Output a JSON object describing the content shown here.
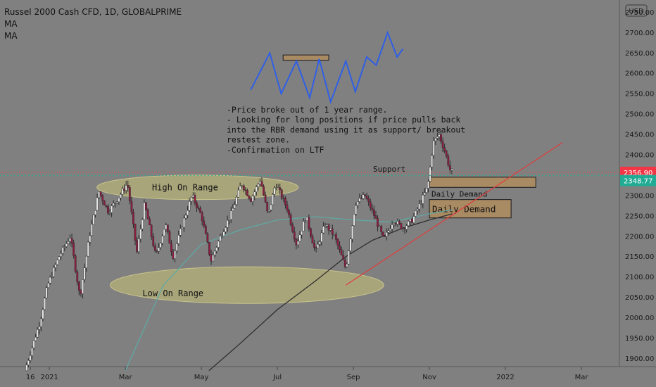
{
  "header": {
    "title": "Russel 2000 Cash CFD, 1D, GLOBALPRIME",
    "indicators": [
      "MA",
      "MA"
    ]
  },
  "currency_badge": "USD",
  "chart_data": {
    "type": "candlestick",
    "symbol": "Russel 2000 Cash CFD",
    "timeframe": "1D",
    "ylim": [
      1880,
      2780
    ],
    "y_ticks": [
      1900,
      1950,
      2000,
      2050,
      2100,
      2150,
      2200,
      2250,
      2300,
      2350,
      2400,
      2450,
      2500,
      2550,
      2600,
      2650,
      2700,
      2750
    ],
    "x_ticks": [
      {
        "label": "16",
        "month": -0.5
      },
      {
        "label": "2021",
        "month": 0
      },
      {
        "label": "Mar",
        "month": 2
      },
      {
        "label": "May",
        "month": 4
      },
      {
        "label": "Jul",
        "month": 6
      },
      {
        "label": "Sep",
        "month": 8
      },
      {
        "label": "Nov",
        "month": 10
      },
      {
        "label": "2022",
        "month": 12
      },
      {
        "label": "Mar",
        "month": 14
      }
    ],
    "xlim_months": [
      -1.3,
      15.0
    ],
    "price_path": [
      [
        -0.6,
        1870
      ],
      [
        -0.2,
        1990
      ],
      [
        0.0,
        2080
      ],
      [
        0.3,
        2150
      ],
      [
        0.6,
        2200
      ],
      [
        0.85,
        2050
      ],
      [
        1.1,
        2200
      ],
      [
        1.35,
        2310
      ],
      [
        1.6,
        2260
      ],
      [
        1.9,
        2300
      ],
      [
        2.1,
        2330
      ],
      [
        2.35,
        2160
      ],
      [
        2.55,
        2280
      ],
      [
        2.85,
        2150
      ],
      [
        3.1,
        2230
      ],
      [
        3.3,
        2150
      ],
      [
        3.55,
        2230
      ],
      [
        3.8,
        2300
      ],
      [
        4.05,
        2250
      ],
      [
        4.3,
        2140
      ],
      [
        4.55,
        2200
      ],
      [
        4.85,
        2260
      ],
      [
        5.1,
        2330
      ],
      [
        5.35,
        2290
      ],
      [
        5.6,
        2340
      ],
      [
        5.8,
        2250
      ],
      [
        6.0,
        2330
      ],
      [
        6.3,
        2270
      ],
      [
        6.55,
        2180
      ],
      [
        6.8,
        2250
      ],
      [
        7.05,
        2160
      ],
      [
        7.3,
        2230
      ],
      [
        7.55,
        2200
      ],
      [
        7.85,
        2120
      ],
      [
        8.1,
        2280
      ],
      [
        8.35,
        2300
      ],
      [
        8.6,
        2250
      ],
      [
        8.85,
        2190
      ],
      [
        9.1,
        2240
      ],
      [
        9.35,
        2220
      ],
      [
        9.6,
        2240
      ],
      [
        9.85,
        2290
      ],
      [
        10.0,
        2320
      ],
      [
        10.15,
        2430
      ],
      [
        10.3,
        2450
      ],
      [
        10.45,
        2410
      ],
      [
        10.6,
        2360
      ]
    ],
    "series": [
      {
        "name": "MA",
        "color": "#5fa8a2",
        "points": [
          [
            2.0,
            1870
          ],
          [
            3.0,
            2080
          ],
          [
            4.0,
            2180
          ],
          [
            5.0,
            2215
          ],
          [
            6.0,
            2240
          ],
          [
            7.0,
            2248
          ],
          [
            8.0,
            2240
          ],
          [
            9.0,
            2235
          ],
          [
            10.0,
            2255
          ],
          [
            10.6,
            2265
          ]
        ]
      },
      {
        "name": "MA",
        "color": "#2f2f2f",
        "points": [
          [
            4.2,
            1870
          ],
          [
            5.0,
            1935
          ],
          [
            6.0,
            2020
          ],
          [
            7.0,
            2090
          ],
          [
            7.8,
            2150
          ],
          [
            8.5,
            2190
          ],
          [
            9.3,
            2220
          ],
          [
            10.0,
            2240
          ],
          [
            10.6,
            2255
          ]
        ]
      }
    ],
    "current_price": "2356.90",
    "ma_value": "2348.77",
    "price_label_colors": {
      "current": "#f23645",
      "ma": "#22ab94"
    },
    "zones": [
      {
        "label": "High On Range",
        "kind": "ellipse",
        "center_month": 3.9,
        "center_price": 2320,
        "half_months": 2.65,
        "half_price": 30
      },
      {
        "label": "Low On Range",
        "kind": "ellipse",
        "center_month": 5.2,
        "center_price": 2080,
        "half_months": 3.6,
        "half_price": 45
      }
    ],
    "demand_boxes": [
      {
        "label": "Daily Demand",
        "month_start": 10.0,
        "month_end": 12.8,
        "top": 2345,
        "bottom": 2320,
        "label_size": "small"
      },
      {
        "label": "Daily Demand",
        "month_start": 10.0,
        "month_end": 12.15,
        "top": 2290,
        "bottom": 2245,
        "label_size": "large"
      }
    ],
    "projection_box": {
      "month_start": 6.15,
      "month_end": 7.35,
      "top": 2645,
      "bottom": 2632
    },
    "support_label": "Support",
    "trendline": {
      "start": [
        7.8,
        2080
      ],
      "end": [
        13.5,
        2430
      ],
      "color": "#e23b3b"
    },
    "projection_path": [
      [
        5.3,
        2560
      ],
      [
        5.8,
        2650
      ],
      [
        6.1,
        2550
      ],
      [
        6.5,
        2630
      ],
      [
        6.85,
        2540
      ],
      [
        7.1,
        2635
      ],
      [
        7.4,
        2530
      ],
      [
        7.8,
        2630
      ],
      [
        8.05,
        2555
      ],
      [
        8.35,
        2640
      ],
      [
        8.6,
        2620
      ],
      [
        8.9,
        2700
      ],
      [
        9.15,
        2640
      ],
      [
        9.3,
        2660
      ]
    ],
    "projection_segments": [
      {
        "from": [
          5.3,
          2560
        ],
        "to": [
          8.35,
          2640
        ],
        "color": "#2e5ce8"
      },
      {
        "from": [
          8.35,
          2640
        ],
        "to": [
          9.3,
          2660
        ],
        "color": "#4d7ff0"
      }
    ],
    "annotation_lines": [
      "-Price broke out of 1 year range.",
      "- Looking for long positions if price pulls back",
      "into the RBR demand using it as support/ breakout",
      "restest zone.",
      "-Confirmation on LTF"
    ]
  }
}
